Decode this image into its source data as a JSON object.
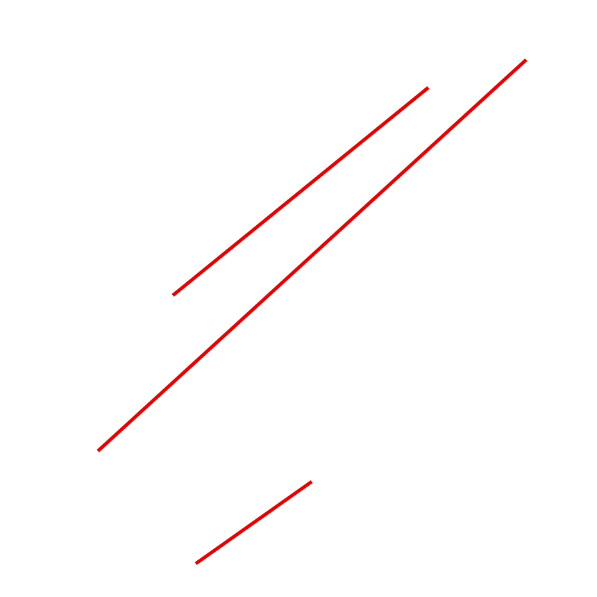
{
  "canvas": {
    "background_color": "#ffffff"
  },
  "lines": {
    "stroke_color": "#e60000",
    "count": 3
  }
}
